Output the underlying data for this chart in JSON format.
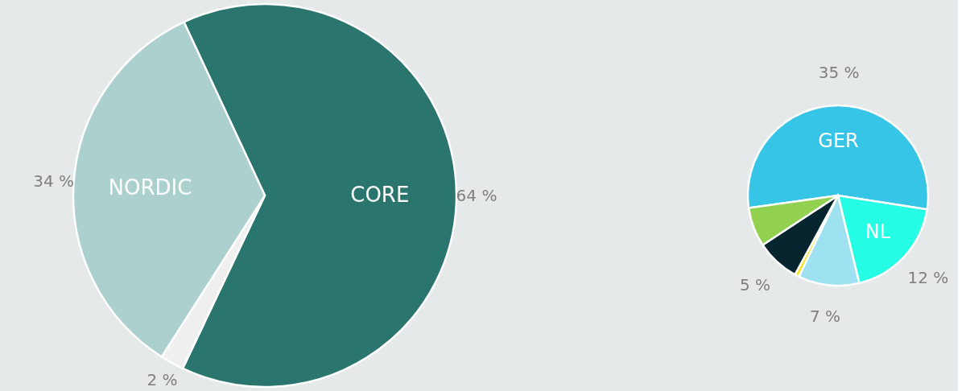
{
  "chart_data": [
    {
      "type": "pie",
      "categories": [
        "CORE",
        null,
        "NORDIC"
      ],
      "values": [
        64,
        2,
        34
      ],
      "colors": [
        "#2a766f",
        "#efefef",
        "#abd0cd"
      ],
      "value_labels": [
        "64 %",
        "2 %",
        "34 %"
      ]
    },
    {
      "type": "pie",
      "categories": [
        "GER",
        "NL",
        null,
        null,
        null,
        null
      ],
      "values": [
        35,
        12,
        7,
        0.5,
        5,
        4.5
      ],
      "colors": [
        "#36c5e6",
        "#26fde5",
        "#9ee1f0",
        "#f5e31a",
        "#06252e",
        "#92d050"
      ],
      "value_labels": [
        "35 %",
        "12 %",
        "7 %",
        null,
        "5 %",
        null
      ]
    }
  ]
}
